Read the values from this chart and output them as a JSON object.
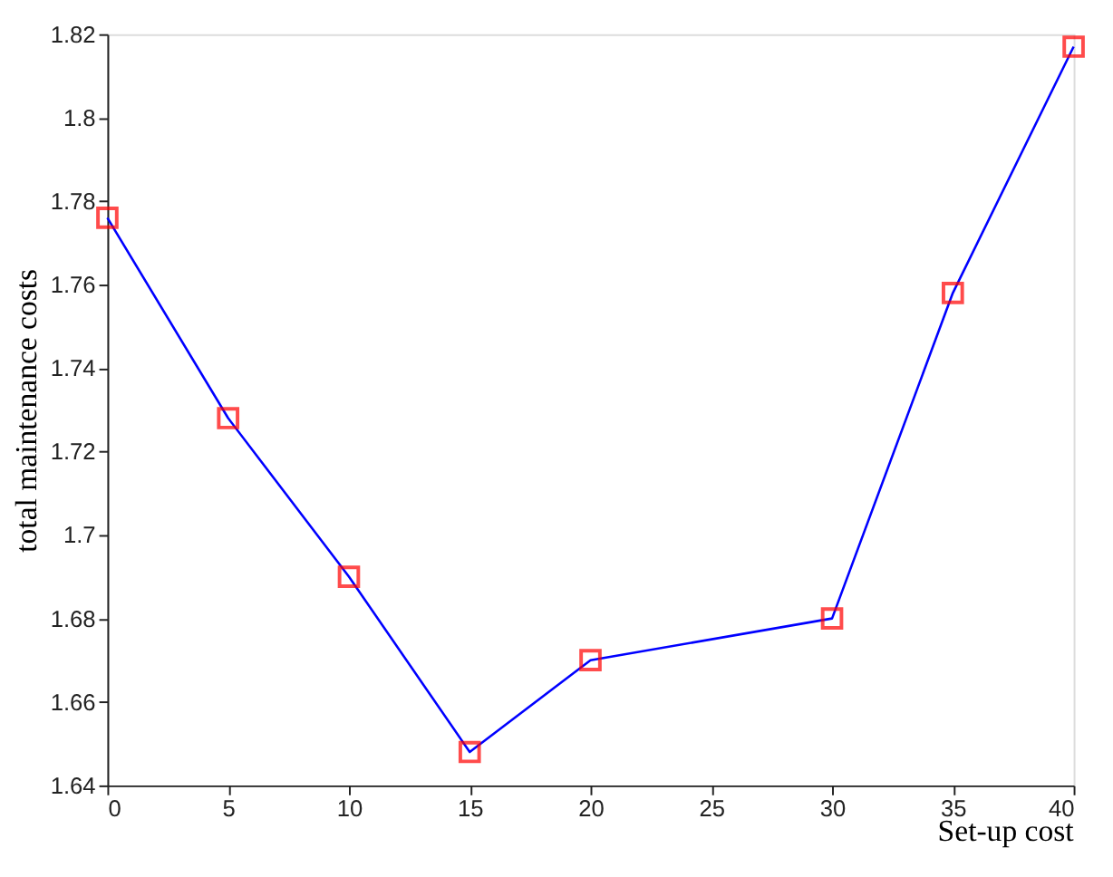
{
  "chart_data": {
    "type": "line",
    "xlabel": "Set-up cost",
    "ylabel": "total maintenance costs",
    "x": [
      0,
      5,
      10,
      15,
      20,
      30,
      35,
      40
    ],
    "series": [
      {
        "color": "#0000ff",
        "values": [
          1.776,
          1.728,
          1.69,
          1.648,
          1.67,
          1.68,
          1.758,
          1.817
        ],
        "colors": [
          "#ff0000",
          "#ff0000",
          "#ff0000",
          "#ff0000",
          "#ff0000",
          "#ff0000",
          "#ff0000",
          "#ff0000"
        ]
      }
    ],
    "xlim": [
      0,
      40
    ],
    "xticks": [
      0,
      5,
      10,
      15,
      20,
      25,
      30,
      35,
      40
    ],
    "ylim": [
      1.64,
      1.82
    ],
    "yticks": [
      1.64,
      1.66,
      1.68,
      1.7,
      1.72,
      1.74,
      1.76,
      1.78,
      1.8,
      1.82
    ],
    "grid": false,
    "marker": "square",
    "line_style": "solid"
  }
}
